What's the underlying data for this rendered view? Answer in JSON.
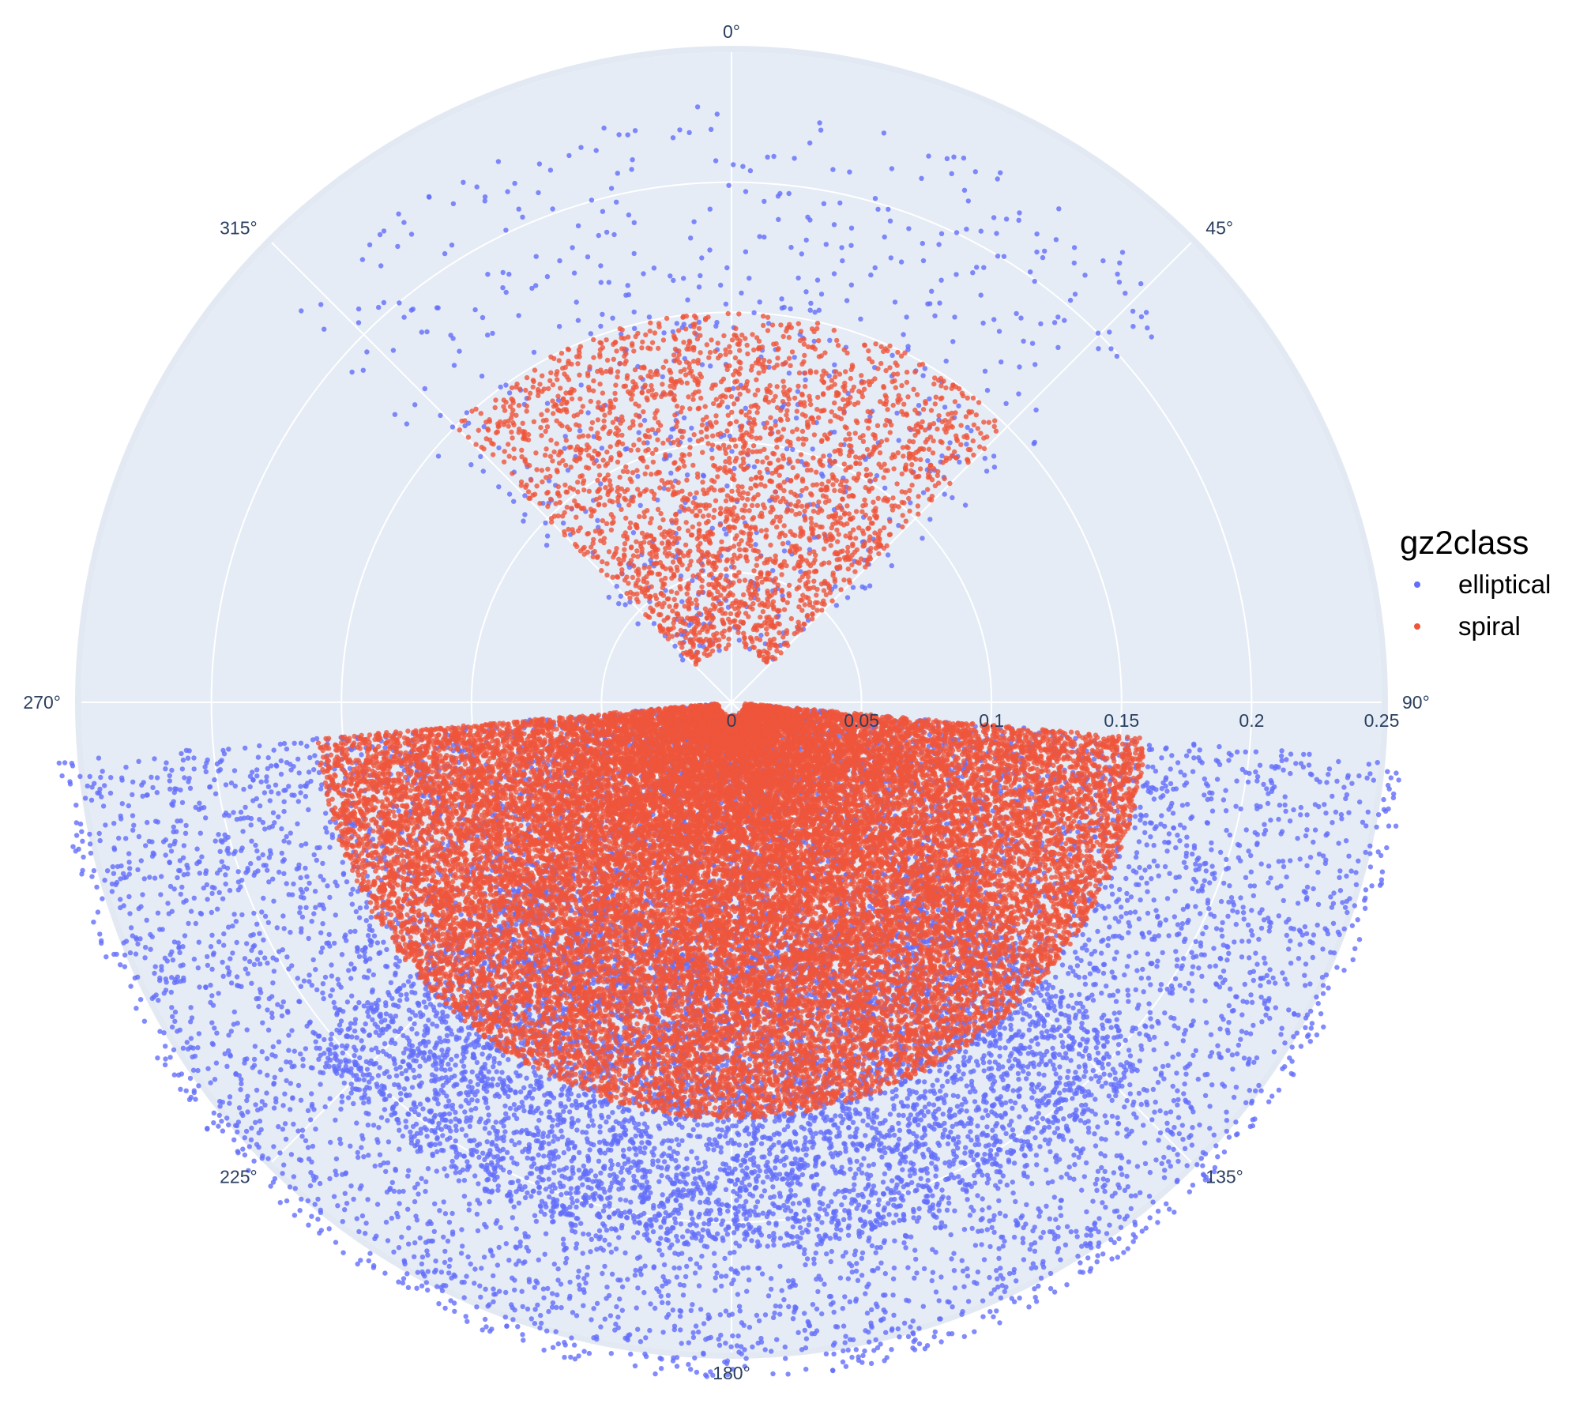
{
  "chart_data": {
    "type": "scatter",
    "subtype": "polar",
    "title": "",
    "angular_axis": {
      "direction": "clockwise",
      "rotation": "0° at top",
      "unit": "degrees",
      "ticks": [
        0,
        45,
        90,
        135,
        180,
        225,
        270,
        315
      ],
      "tick_labels": [
        "0°",
        "45°",
        "90°",
        "135°",
        "180°",
        "225°",
        "270°",
        "315°"
      ]
    },
    "radial_axis": {
      "range": [
        0,
        0.25
      ],
      "ticks": [
        0,
        0.05,
        0.1,
        0.15,
        0.2,
        0.25
      ],
      "tick_labels": [
        "0",
        "0.05",
        "0.1",
        "0.15",
        "0.2",
        "0.25"
      ],
      "tick_label_angle_deg": 90
    },
    "grid": true,
    "background_color": "#e5ecf6",
    "grid_color": "#ffffff",
    "legend": {
      "title": "gz2class",
      "position": "right"
    },
    "series": [
      {
        "name": "elliptical",
        "color": "#636efa",
        "clusters": [
          {
            "theta_range": [
              310,
              50
            ],
            "r_range": [
              0.02,
              0.23
            ],
            "count": 700
          },
          {
            "theta_range": [
              95,
              265
            ],
            "r_range": [
              0.005,
              0.26
            ],
            "count": 9000
          },
          {
            "theta_range": [
              130,
              230
            ],
            "r_range": [
              0.09,
              0.21
            ],
            "count": 4000
          }
        ]
      },
      {
        "name": "spiral",
        "color": "#ef553b",
        "clusters": [
          {
            "theta_range": [
              315,
              45
            ],
            "r_range": [
              0.02,
              0.15
            ],
            "count": 2600
          },
          {
            "theta_range": [
              95,
              265
            ],
            "r_range": [
              0.005,
              0.16
            ],
            "count": 26000
          }
        ]
      }
    ]
  }
}
